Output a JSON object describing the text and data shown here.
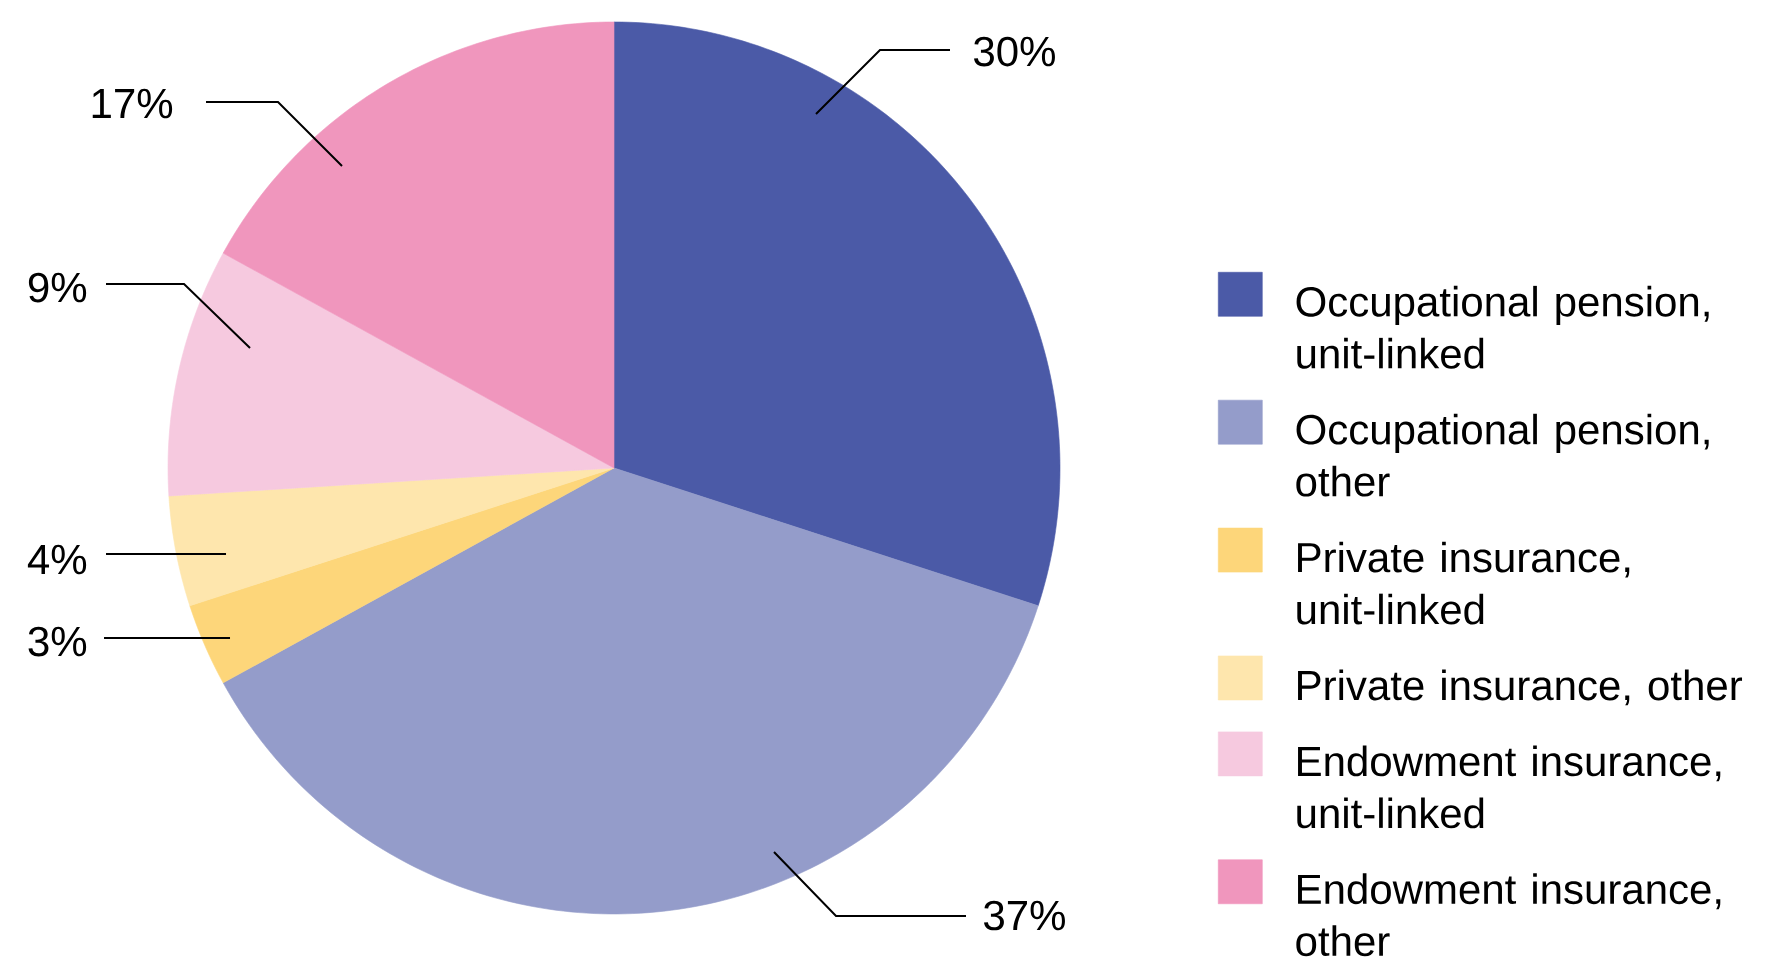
{
  "chart_data": {
    "type": "pie",
    "categories": [
      "Occupational pension, unit-linked",
      "Occupational pension, other",
      "Private insurance, unit-linked",
      "Private insurance, other",
      "Endowment insurance, unit-linked",
      "Endowment insurance, other"
    ],
    "values": [
      30,
      37,
      3,
      4,
      9,
      17
    ],
    "colors": [
      "#4b5aa7",
      "#949cca",
      "#fdd67a",
      "#fee6ad",
      "#f6c9df",
      "#f096bd"
    ],
    "value_labels": [
      "30%",
      "37%",
      "3%",
      "4%",
      "9%",
      "17%"
    ],
    "legend": "right"
  }
}
